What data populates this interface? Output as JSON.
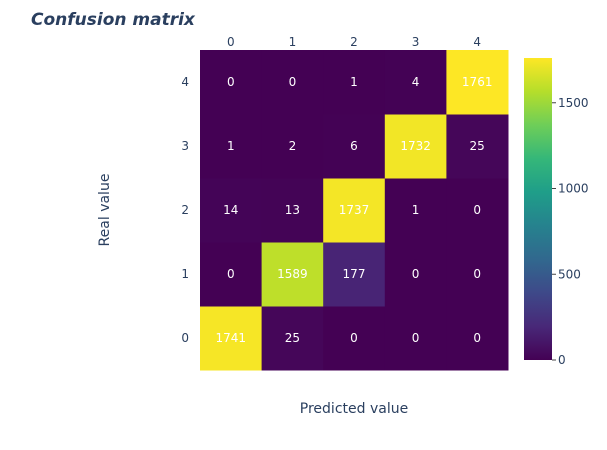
{
  "chart_data": {
    "type": "heatmap",
    "title": "Confusion matrix",
    "xlabel": "Predicted value",
    "ylabel": "Real value",
    "x_categories": [
      "0",
      "1",
      "2",
      "3",
      "4"
    ],
    "y_categories": [
      "0",
      "1",
      "2",
      "3",
      "4"
    ],
    "x_axis_side": "top",
    "matrix": [
      [
        1741,
        25,
        0,
        0,
        0
      ],
      [
        0,
        1589,
        177,
        0,
        0
      ],
      [
        14,
        13,
        1737,
        1,
        0
      ],
      [
        1,
        2,
        6,
        1732,
        25
      ],
      [
        0,
        0,
        1,
        4,
        1761
      ]
    ],
    "zrange": [
      0,
      1761
    ],
    "colorscale": "viridis",
    "colorbar_ticks": [
      0,
      500,
      1000,
      1500
    ],
    "grid": false,
    "legend": "colorbar-right"
  }
}
